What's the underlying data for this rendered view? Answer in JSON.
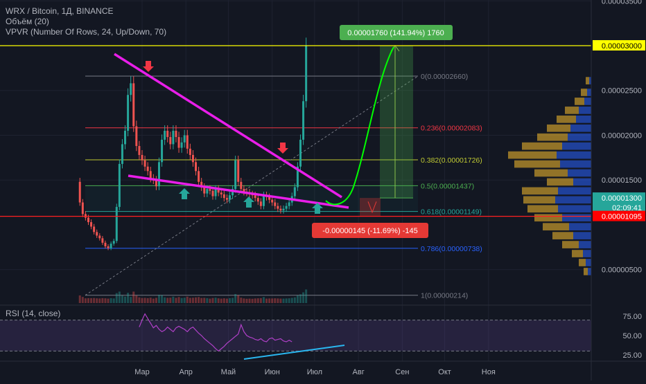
{
  "header": {
    "symbol": "WRX / Bitcoin, 1Д, BINANCE",
    "indicator1": "Объём (20)",
    "indicator2": "VPVR (Number Of Rows, 24, Up/Down, 70)",
    "rsi": "RSI (14, close)"
  },
  "price_axis": {
    "ticks": [
      {
        "label": "0.00003500",
        "value": 3.5e-05
      },
      {
        "label": "0.00002500",
        "value": 2.5e-05
      },
      {
        "label": "0.00002000",
        "value": 2e-05
      },
      {
        "label": "0.00001500",
        "value": 1.5e-05
      },
      {
        "label": "0.00000500",
        "value": 5e-06
      }
    ],
    "badges": [
      {
        "label": "0.00003000",
        "value": 3e-05,
        "bg": "#ffff00",
        "fg": "#000000"
      },
      {
        "label": "0.00001300",
        "value": 1.3e-05,
        "bg": "#26a69a",
        "fg": "#ffffff"
      },
      {
        "label": "02:09:41",
        "value": 1.21e-05,
        "bg": "#26a69a",
        "fg": "#ffffff"
      },
      {
        "label": "0.00001095",
        "value": 1.095e-05,
        "bg": "#ff0000",
        "fg": "#ffffff"
      }
    ]
  },
  "rsi_axis": {
    "ticks": [
      {
        "label": "75.00",
        "value": 75
      },
      {
        "label": "50.00",
        "value": 50
      },
      {
        "label": "25.00",
        "value": 25
      }
    ]
  },
  "time_axis": {
    "ticks": [
      {
        "label": "Мар",
        "day": 0
      },
      {
        "label": "Апр",
        "day": 31
      },
      {
        "label": "Май",
        "day": 61
      },
      {
        "label": "Июн",
        "day": 92
      },
      {
        "label": "Июл",
        "day": 122
      },
      {
        "label": "Авг",
        "day": 153
      },
      {
        "label": "Сен",
        "day": 184
      },
      {
        "label": "Окт",
        "day": 214
      },
      {
        "label": "Ноя",
        "day": 245
      }
    ]
  },
  "annotations": {
    "target_label": "0.00001760 (141.94%) 1760",
    "stop_label": "-0.00000145 (-11.69%) -145",
    "colors": {
      "target": "#4caf50",
      "stop": "#e53935",
      "trendline": "#e91ee9",
      "curve": "#00ff00",
      "arrow_down": "#f23645",
      "arrow_up": "#26a69a"
    }
  },
  "chart_data": [
    {
      "type": "line",
      "title": "WRX / Bitcoin, 1Д, BINANCE",
      "ylim": [
        1.1e-06,
        3.65e-05
      ],
      "fib_levels": [
        {
          "label": "0(0.00002660)",
          "value": 2.66e-05,
          "color": "#787b86"
        },
        {
          "label": "0.236(0.00002083)",
          "value": 2.083e-05,
          "color": "#f23645"
        },
        {
          "label": "0.382(0.00001726)",
          "value": 1.726e-05,
          "color": "#c0ca33"
        },
        {
          "label": "0.5(0.00001437)",
          "value": 1.437e-05,
          "color": "#4caf50"
        },
        {
          "label": "0.618(0.00001149)",
          "value": 1.149e-05,
          "color": "#26a69a"
        },
        {
          "label": "0.786(0.00000738)",
          "value": 7.38e-06,
          "color": "#2962ff"
        },
        {
          "label": "1(0.00000214)",
          "value": 2.14e-06,
          "color": "#787b86"
        }
      ],
      "series": [
        {
          "x": [
            -46,
            -44,
            -42,
            -40,
            -38,
            -36,
            -34,
            -32,
            -30,
            -28,
            -26,
            -24,
            -22,
            -20,
            -18,
            -16,
            -14,
            -12,
            -10,
            -8,
            -6,
            -4,
            -2,
            0,
            2,
            4,
            6,
            8,
            10,
            12,
            14,
            16,
            18,
            20,
            22,
            24,
            26,
            28,
            30,
            32,
            34,
            36,
            38,
            40,
            42,
            44,
            46,
            48,
            50,
            52,
            54,
            56,
            58,
            60,
            62,
            64,
            66,
            68,
            70,
            72,
            74,
            76,
            78,
            80,
            82,
            84,
            86,
            88,
            90,
            92,
            94,
            96,
            98,
            100,
            102,
            104,
            106,
            108,
            110,
            112,
            114,
            116
          ],
          "y": [
            1.48e-05,
            1.25e-05,
            1.12e-05,
            1.08e-05,
            1.03e-05,
            9.8e-06,
            9.2e-06,
            8.8e-06,
            8.5e-06,
            8e-06,
            7.6e-06,
            7.4e-06,
            7.9e-06,
            8.2e-06,
            1.2e-05,
            1.68e-05,
            1.9e-05,
            2.05e-05,
            2.45e-05,
            2.58e-05,
            2.1e-05,
            1.88e-05,
            1.78e-05,
            1.72e-05,
            1.65e-05,
            1.6e-05,
            1.52e-05,
            1.5e-05,
            1.43e-05,
            1.7e-05,
            1.95e-05,
            2.05e-05,
            1.98e-05,
            1.9e-05,
            2.05e-05,
            1.98e-05,
            1.86e-05,
            1.92e-05,
            2e-05,
            1.85e-05,
            1.78e-05,
            1.7e-05,
            1.6e-05,
            1.48e-05,
            1.42e-05,
            1.35e-05,
            1.4e-05,
            1.38e-05,
            1.32e-05,
            1.4e-05,
            1.36e-05,
            1.34e-05,
            1.3e-05,
            1.28e-05,
            1.33e-05,
            1.4e-05,
            1.72e-05,
            1.48e-05,
            1.4e-05,
            1.37e-05,
            1.36e-05,
            1.34e-05,
            1.33e-05,
            1.3e-05,
            1.26e-05,
            1.21e-05,
            1.33e-05,
            1.31e-05,
            1.28e-05,
            1.25e-05,
            1.21e-05,
            1.18e-05,
            1.16e-05,
            1.18e-05,
            1.21e-05,
            1.25e-05,
            1.32e-05,
            1.42e-05,
            1.65e-05,
            1.95e-05,
            2.38e-05,
            3e-05
          ]
        }
      ]
    },
    {
      "type": "line",
      "title": "RSI (14, close)",
      "ylim": [
        20,
        90
      ],
      "series": [
        {
          "x": [
            -2,
            0,
            2,
            4,
            6,
            8,
            10,
            12,
            14,
            16,
            18,
            20,
            22,
            24,
            26,
            28,
            30,
            32,
            34,
            36,
            38,
            40,
            42,
            44,
            46,
            48,
            50,
            52,
            54,
            56,
            58,
            60,
            62,
            64,
            66,
            68,
            70,
            72,
            74,
            76,
            78,
            80,
            82,
            84,
            86,
            88,
            90,
            92,
            94,
            96,
            98,
            100,
            102,
            104,
            106
          ],
          "y": [
            61,
            70,
            78,
            72,
            66,
            60,
            63,
            58,
            55,
            57,
            61,
            58,
            55,
            60,
            62,
            60,
            58,
            55,
            59,
            61,
            57,
            53,
            50,
            46,
            43,
            40,
            37,
            33,
            30,
            33,
            36,
            40,
            43,
            46,
            49,
            52,
            64,
            55,
            50,
            48,
            47,
            45,
            44,
            46,
            43,
            42,
            46,
            47,
            44,
            45,
            46,
            43,
            42,
            44,
            42
          ]
        }
      ]
    }
  ]
}
